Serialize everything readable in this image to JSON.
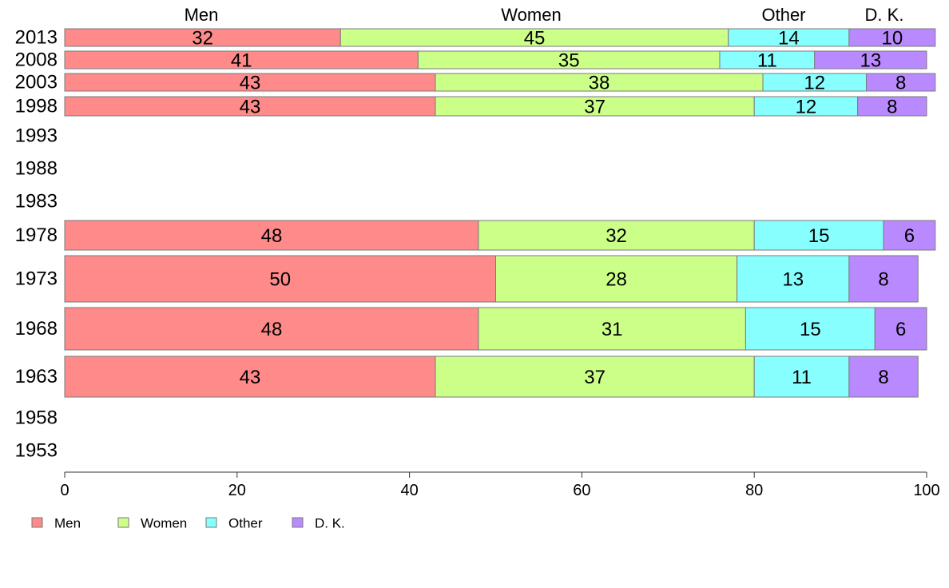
{
  "chart_data": {
    "type": "bar",
    "orientation": "horizontal",
    "stacked": true,
    "series": [
      {
        "name": "Men",
        "color": "#ff8a8a"
      },
      {
        "name": "Women",
        "color": "#ccff88"
      },
      {
        "name": "Other",
        "color": "#88ffff"
      },
      {
        "name": "D. K.",
        "color": "#b98aff"
      }
    ],
    "top_labels": [
      "Men",
      "Women",
      "Other",
      "D. K."
    ],
    "rows": [
      {
        "year": "2013",
        "values": [
          32,
          45,
          14,
          10
        ]
      },
      {
        "year": "2008",
        "values": [
          41,
          35,
          11,
          13
        ]
      },
      {
        "year": "2003",
        "values": [
          43,
          38,
          12,
          8
        ]
      },
      {
        "year": "1998",
        "values": [
          43,
          37,
          12,
          8
        ]
      },
      {
        "year": "1993",
        "values": null
      },
      {
        "year": "1988",
        "values": null
      },
      {
        "year": "1983",
        "values": null
      },
      {
        "year": "1978",
        "values": [
          48,
          32,
          15,
          6
        ]
      },
      {
        "year": "1973",
        "values": [
          50,
          28,
          13,
          8
        ]
      },
      {
        "year": "1968",
        "values": [
          48,
          31,
          15,
          6
        ]
      },
      {
        "year": "1963",
        "values": [
          43,
          37,
          11,
          8
        ]
      },
      {
        "year": "1958",
        "values": null
      },
      {
        "year": "1953",
        "values": null
      }
    ],
    "xlim": [
      0,
      100
    ],
    "xticks": [
      0,
      20,
      40,
      60,
      80,
      100
    ],
    "legend_position": "bottom-left",
    "grid": false
  }
}
